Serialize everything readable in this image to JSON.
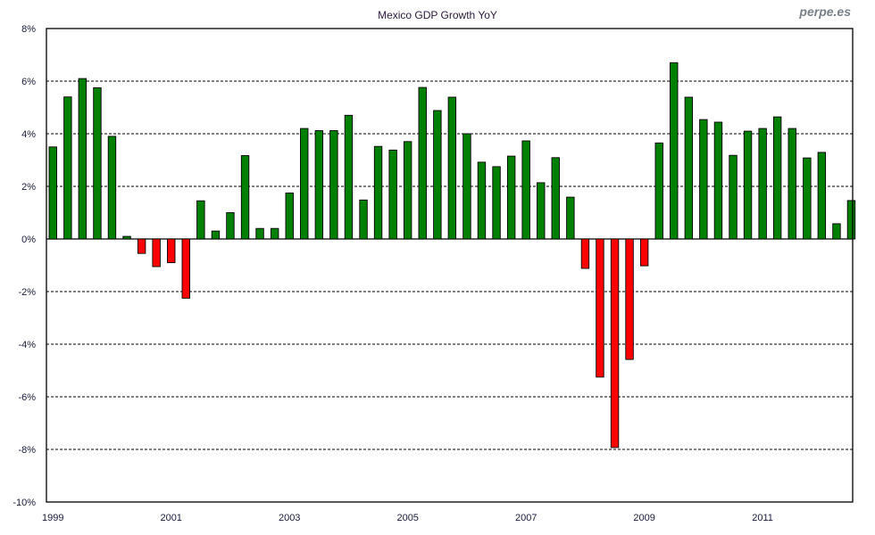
{
  "watermark": "perpe.es",
  "colors": {
    "positive": "#008000",
    "negative": "#ff0000",
    "border": "#000000",
    "grid": "#000000"
  },
  "chart_data": {
    "type": "bar",
    "title": "Mexico GDP Growth YoY",
    "xlabel": "",
    "ylabel": "",
    "ylim": [
      -10,
      8
    ],
    "grid": true,
    "y_ticks": [
      8,
      6,
      4,
      2,
      0,
      -2,
      -4,
      -6,
      -8,
      -10
    ],
    "y_tick_labels": [
      "8%",
      "6%",
      "4%",
      "2%",
      "0%",
      "-2%",
      "-4%",
      "-6%",
      "-8%",
      "-10%"
    ],
    "x_tick_labels": [
      "1999",
      "2001",
      "2003",
      "2005",
      "2007",
      "2009",
      "2011"
    ],
    "categories": [
      "1999Q1",
      "1999Q2",
      "1999Q3",
      "1999Q4",
      "2000Q1",
      "2000Q2",
      "2000Q3",
      "2000Q4",
      "2001Q1",
      "2001Q2",
      "2001Q3",
      "2001Q4",
      "2002Q1",
      "2002Q2",
      "2002Q3",
      "2002Q4",
      "2003Q1",
      "2003Q2",
      "2003Q3",
      "2003Q4",
      "2004Q1",
      "2004Q2",
      "2004Q3",
      "2004Q4",
      "2005Q1",
      "2005Q2",
      "2005Q3",
      "2005Q4",
      "2006Q1",
      "2006Q2",
      "2006Q3",
      "2006Q4",
      "2007Q1",
      "2007Q2",
      "2007Q3",
      "2007Q4",
      "2008Q1",
      "2008Q2",
      "2008Q3",
      "2008Q4",
      "2009Q1",
      "2009Q2",
      "2009Q3",
      "2009Q4",
      "2010Q1",
      "2010Q2",
      "2010Q3",
      "2010Q4",
      "2011Q1",
      "2011Q2",
      "2011Q3",
      "2011Q4",
      "2012Q1",
      "2012Q2",
      "2012Q3"
    ],
    "values": [
      3.5,
      5.4,
      6.1,
      5.75,
      3.9,
      0.1,
      -0.55,
      -1.05,
      -0.9,
      -2.25,
      1.45,
      0.3,
      1.0,
      3.17,
      0.4,
      0.4,
      1.75,
      4.2,
      4.12,
      4.12,
      4.7,
      1.48,
      3.52,
      3.38,
      3.7,
      5.76,
      4.88,
      5.39,
      4.0,
      2.92,
      2.75,
      3.15,
      3.73,
      2.14,
      3.09,
      1.59,
      -1.12,
      -5.25,
      -7.93,
      -4.58,
      -1.02,
      3.65,
      6.7,
      5.39,
      4.54,
      4.44,
      3.18,
      4.1,
      4.2,
      4.64,
      4.2,
      3.08,
      3.29,
      0.58,
      1.46
    ]
  }
}
